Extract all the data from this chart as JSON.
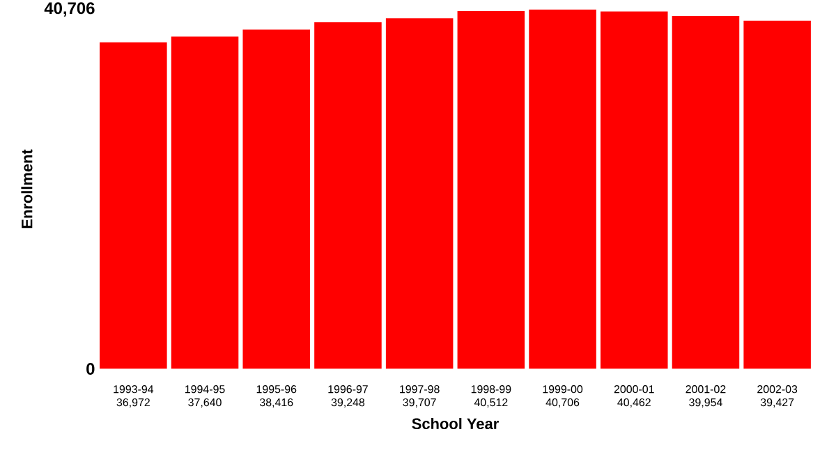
{
  "chart_data": {
    "type": "bar",
    "xlabel": "School Year",
    "ylabel": "Enrollment",
    "categories": [
      "1993-94",
      "1994-95",
      "1995-96",
      "1996-97",
      "1997-98",
      "1998-99",
      "1999-00",
      "2000-01",
      "2001-02",
      "2002-03"
    ],
    "values": [
      36972,
      37640,
      38416,
      39248,
      39707,
      40512,
      40706,
      40462,
      39954,
      39427
    ],
    "value_labels": [
      "36,972",
      "37,640",
      "38,416",
      "39,248",
      "39,707",
      "40,512",
      "40,706",
      "40,462",
      "39,954",
      "39,427"
    ],
    "color": "#ff0000",
    "ylim": [
      0,
      40706
    ],
    "yticks": [
      0,
      {
        "value": 40706,
        "label": "40,706"
      }
    ],
    "grid": false
  }
}
